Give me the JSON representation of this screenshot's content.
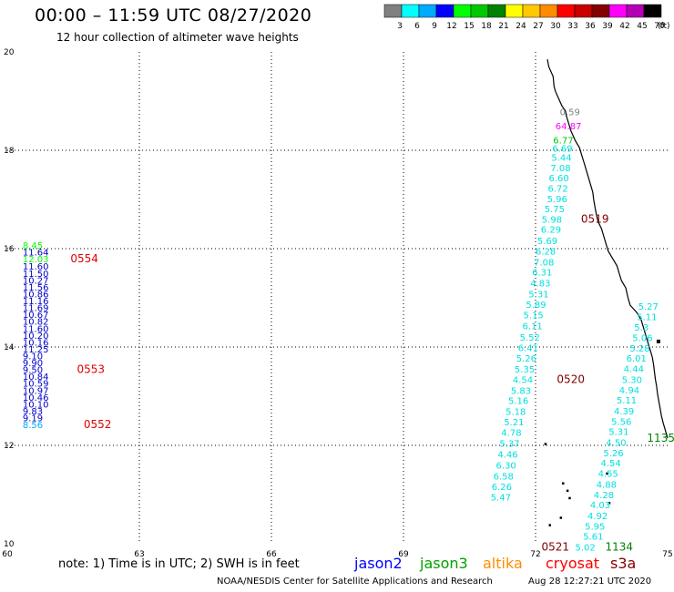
{
  "header": {
    "title": "00:00 – 11:59 UTC 08/27/2020",
    "subtitle": "12 hour collection of altimeter wave heights"
  },
  "legend": {
    "swatches": [
      {
        "label": "3",
        "color": "#808080"
      },
      {
        "label": "6",
        "color": "#00ffff"
      },
      {
        "label": "9",
        "color": "#00aaff"
      },
      {
        "label": "12",
        "color": "#0000ff"
      },
      {
        "label": "15",
        "color": "#00ff00"
      },
      {
        "label": "18",
        "color": "#00c800"
      },
      {
        "label": "21",
        "color": "#008200"
      },
      {
        "label": "24",
        "color": "#ffff00"
      },
      {
        "label": "27",
        "color": "#ffc800"
      },
      {
        "label": "30",
        "color": "#ff8c00"
      },
      {
        "label": "33",
        "color": "#ff0000"
      },
      {
        "label": "36",
        "color": "#c80000"
      },
      {
        "label": "39",
        "color": "#820000"
      },
      {
        "label": "42",
        "color": "#ff00ff"
      },
      {
        "label": "45",
        "color": "#b400b4"
      },
      {
        "label": "70",
        "color": "#000000"
      }
    ],
    "unit": "(ft)"
  },
  "map": {
    "lon_range": [
      60,
      75
    ],
    "lat_range": [
      10,
      20
    ],
    "x_ticks": [
      "60",
      "63",
      "66",
      "69",
      "72",
      "75"
    ],
    "y_ticks": [
      "10",
      "12",
      "14",
      "16",
      "18",
      "20"
    ]
  },
  "tracks": [
    {
      "satellite": "jason2",
      "color": "#0000c8",
      "points": [
        {
          "lon": 60.35,
          "lat": 16.0,
          "v": "8.45",
          "c": "#00ff00"
        },
        {
          "lon": 60.35,
          "lat": 15.86,
          "v": "11.64"
        },
        {
          "lon": 60.35,
          "lat": 15.72,
          "v": "12.03",
          "c": "#00ff00"
        },
        {
          "lon": 60.35,
          "lat": 15.57,
          "v": "11.60"
        },
        {
          "lon": 60.35,
          "lat": 15.43,
          "v": "11.50"
        },
        {
          "lon": 60.35,
          "lat": 15.29,
          "v": "10.27"
        },
        {
          "lon": 60.35,
          "lat": 15.15,
          "v": "11.56"
        },
        {
          "lon": 60.35,
          "lat": 15.01,
          "v": "10.86"
        },
        {
          "lon": 60.35,
          "lat": 14.87,
          "v": "11.16"
        },
        {
          "lon": 60.35,
          "lat": 14.73,
          "v": "11.69"
        },
        {
          "lon": 60.35,
          "lat": 14.59,
          "v": "10.67"
        },
        {
          "lon": 60.35,
          "lat": 14.45,
          "v": "10.82"
        },
        {
          "lon": 60.35,
          "lat": 14.31,
          "v": "11.60"
        },
        {
          "lon": 60.35,
          "lat": 14.17,
          "v": "10.20"
        },
        {
          "lon": 60.35,
          "lat": 14.03,
          "v": "10.16"
        },
        {
          "lon": 60.35,
          "lat": 13.89,
          "v": "11.25"
        },
        {
          "lon": 60.35,
          "lat": 13.75,
          "v": "9.10"
        },
        {
          "lon": 60.35,
          "lat": 13.61,
          "v": "9.90"
        },
        {
          "lon": 60.35,
          "lat": 13.47,
          "v": "9.50"
        },
        {
          "lon": 60.35,
          "lat": 13.33,
          "v": "10.84"
        },
        {
          "lon": 60.35,
          "lat": 13.19,
          "v": "10.59"
        },
        {
          "lon": 60.35,
          "lat": 13.05,
          "v": "10.97"
        },
        {
          "lon": 60.35,
          "lat": 12.91,
          "v": "10.46"
        },
        {
          "lon": 60.35,
          "lat": 12.77,
          "v": "10.10"
        },
        {
          "lon": 60.35,
          "lat": 12.63,
          "v": "9.83"
        },
        {
          "lon": 60.35,
          "lat": 12.49,
          "v": "9.19"
        },
        {
          "lon": 60.35,
          "lat": 12.35,
          "v": "8.56",
          "c": "#00aaff"
        }
      ]
    },
    {
      "satellite": "jason3",
      "color": "#00e0e0",
      "points": [
        {
          "lon": 72.55,
          "lat": 18.71,
          "v": "0.59",
          "c": "#808080"
        },
        {
          "lon": 72.45,
          "lat": 18.43,
          "v": "64.87",
          "c": "#ff00ff"
        },
        {
          "lon": 72.4,
          "lat": 18.14,
          "v": "6.77",
          "c": "#00c800"
        },
        {
          "lon": 72.38,
          "lat": 17.97,
          "v": "6.69"
        },
        {
          "lon": 72.36,
          "lat": 17.79,
          "v": "5.44"
        },
        {
          "lon": 72.34,
          "lat": 17.57,
          "v": "7.08"
        },
        {
          "lon": 72.3,
          "lat": 17.37,
          "v": "6.60"
        },
        {
          "lon": 72.28,
          "lat": 17.16,
          "v": "6.72"
        },
        {
          "lon": 72.26,
          "lat": 16.94,
          "v": "5.96"
        },
        {
          "lon": 72.2,
          "lat": 16.74,
          "v": "5.75"
        },
        {
          "lon": 72.14,
          "lat": 16.53,
          "v": "5.98"
        },
        {
          "lon": 72.12,
          "lat": 16.32,
          "v": "6.29"
        },
        {
          "lon": 72.04,
          "lat": 16.09,
          "v": "5.69"
        },
        {
          "lon": 72.0,
          "lat": 15.88,
          "v": "6.28"
        },
        {
          "lon": 71.96,
          "lat": 15.66,
          "v": "7.08"
        },
        {
          "lon": 71.92,
          "lat": 15.45,
          "v": "6.31"
        },
        {
          "lon": 71.88,
          "lat": 15.23,
          "v": "4.83"
        },
        {
          "lon": 71.84,
          "lat": 15.01,
          "v": "5.31"
        },
        {
          "lon": 71.78,
          "lat": 14.8,
          "v": "5.89"
        },
        {
          "lon": 71.72,
          "lat": 14.58,
          "v": "5.15"
        },
        {
          "lon": 71.7,
          "lat": 14.36,
          "v": "6.11"
        },
        {
          "lon": 71.64,
          "lat": 14.13,
          "v": "5.52"
        },
        {
          "lon": 71.6,
          "lat": 13.92,
          "v": "6.41"
        },
        {
          "lon": 71.56,
          "lat": 13.7,
          "v": "5.26"
        },
        {
          "lon": 71.52,
          "lat": 13.48,
          "v": "5.35"
        },
        {
          "lon": 71.48,
          "lat": 13.27,
          "v": "4.54"
        },
        {
          "lon": 71.44,
          "lat": 13.05,
          "v": "5.83"
        },
        {
          "lon": 71.38,
          "lat": 12.84,
          "v": "5.16"
        },
        {
          "lon": 71.32,
          "lat": 12.62,
          "v": "5.18"
        },
        {
          "lon": 71.28,
          "lat": 12.41,
          "v": "5.21"
        },
        {
          "lon": 71.22,
          "lat": 12.19,
          "v": "4.78"
        },
        {
          "lon": 71.18,
          "lat": 11.97,
          "v": "5.37"
        },
        {
          "lon": 71.14,
          "lat": 11.75,
          "v": "4.46"
        },
        {
          "lon": 71.1,
          "lat": 11.53,
          "v": "6.30"
        },
        {
          "lon": 71.04,
          "lat": 11.31,
          "v": "6.58"
        },
        {
          "lon": 71.0,
          "lat": 11.09,
          "v": "6.26"
        },
        {
          "lon": 70.98,
          "lat": 10.88,
          "v": "5.47"
        },
        {
          "lon": 74.33,
          "lat": 14.76,
          "v": "5.27"
        },
        {
          "lon": 74.3,
          "lat": 14.55,
          "v": "5.11"
        },
        {
          "lon": 74.24,
          "lat": 14.33,
          "v": "5.3"
        },
        {
          "lon": 74.2,
          "lat": 14.12,
          "v": "5.06"
        },
        {
          "lon": 74.14,
          "lat": 13.91,
          "v": "5.28"
        },
        {
          "lon": 74.06,
          "lat": 13.7,
          "v": "6.01"
        },
        {
          "lon": 74.0,
          "lat": 13.49,
          "v": "4.44"
        },
        {
          "lon": 73.96,
          "lat": 13.27,
          "v": "5.30"
        },
        {
          "lon": 73.9,
          "lat": 13.06,
          "v": "4.94"
        },
        {
          "lon": 73.84,
          "lat": 12.85,
          "v": "5.11"
        },
        {
          "lon": 73.78,
          "lat": 12.63,
          "v": "4.39"
        },
        {
          "lon": 73.72,
          "lat": 12.42,
          "v": "5.56"
        },
        {
          "lon": 73.66,
          "lat": 12.21,
          "v": "5.31"
        },
        {
          "lon": 73.6,
          "lat": 11.99,
          "v": "4.50"
        },
        {
          "lon": 73.54,
          "lat": 11.78,
          "v": "5.26"
        },
        {
          "lon": 73.48,
          "lat": 11.57,
          "v": "4.54"
        },
        {
          "lon": 73.42,
          "lat": 11.36,
          "v": "4.55"
        },
        {
          "lon": 73.38,
          "lat": 11.14,
          "v": "4.88"
        },
        {
          "lon": 73.32,
          "lat": 10.93,
          "v": "4.28"
        },
        {
          "lon": 73.24,
          "lat": 10.72,
          "v": "4.03"
        },
        {
          "lon": 73.18,
          "lat": 10.5,
          "v": "4.92"
        },
        {
          "lon": 73.12,
          "lat": 10.29,
          "v": "5.95"
        },
        {
          "lon": 73.08,
          "lat": 10.08,
          "v": "5.61"
        },
        {
          "lon": 72.9,
          "lat": 9.86,
          "v": "5.02"
        }
      ]
    }
  ],
  "time_labels": [
    {
      "text": "0554",
      "lon": 61.75,
      "lat": 15.72,
      "color": "#dd0000"
    },
    {
      "text": "0553",
      "lon": 61.9,
      "lat": 13.47,
      "color": "#dd0000"
    },
    {
      "text": "0552",
      "lon": 62.05,
      "lat": 12.35,
      "color": "#dd0000"
    },
    {
      "text": "0519",
      "lon": 73.35,
      "lat": 16.53,
      "color": "#800000"
    },
    {
      "text": "0520",
      "lon": 72.8,
      "lat": 13.27,
      "color": "#800000"
    },
    {
      "text": "0521",
      "lon": 72.45,
      "lat": 9.86,
      "color": "#800000"
    },
    {
      "text": "1135",
      "lon": 74.85,
      "lat": 12.07,
      "color": "#008200"
    },
    {
      "text": "1134",
      "lon": 73.9,
      "lat": 9.86,
      "color": "#008200"
    }
  ],
  "footer": {
    "note": "note:  1) Time is in UTC;  2) SWH is in feet",
    "satellites": [
      {
        "name": "jason2",
        "color": "#0000ff"
      },
      {
        "name": "jason3",
        "color": "#00a000"
      },
      {
        "name": "altika",
        "color": "#ff8c00"
      },
      {
        "name": "cryosat",
        "color": "#ff0000"
      },
      {
        "name": "s3a",
        "color": "#800000"
      }
    ],
    "credit": "NOAA/NESDIS Center for Satellite Applications and Research",
    "timestamp": "Aug 28 12:27:21 UTC 2020"
  }
}
